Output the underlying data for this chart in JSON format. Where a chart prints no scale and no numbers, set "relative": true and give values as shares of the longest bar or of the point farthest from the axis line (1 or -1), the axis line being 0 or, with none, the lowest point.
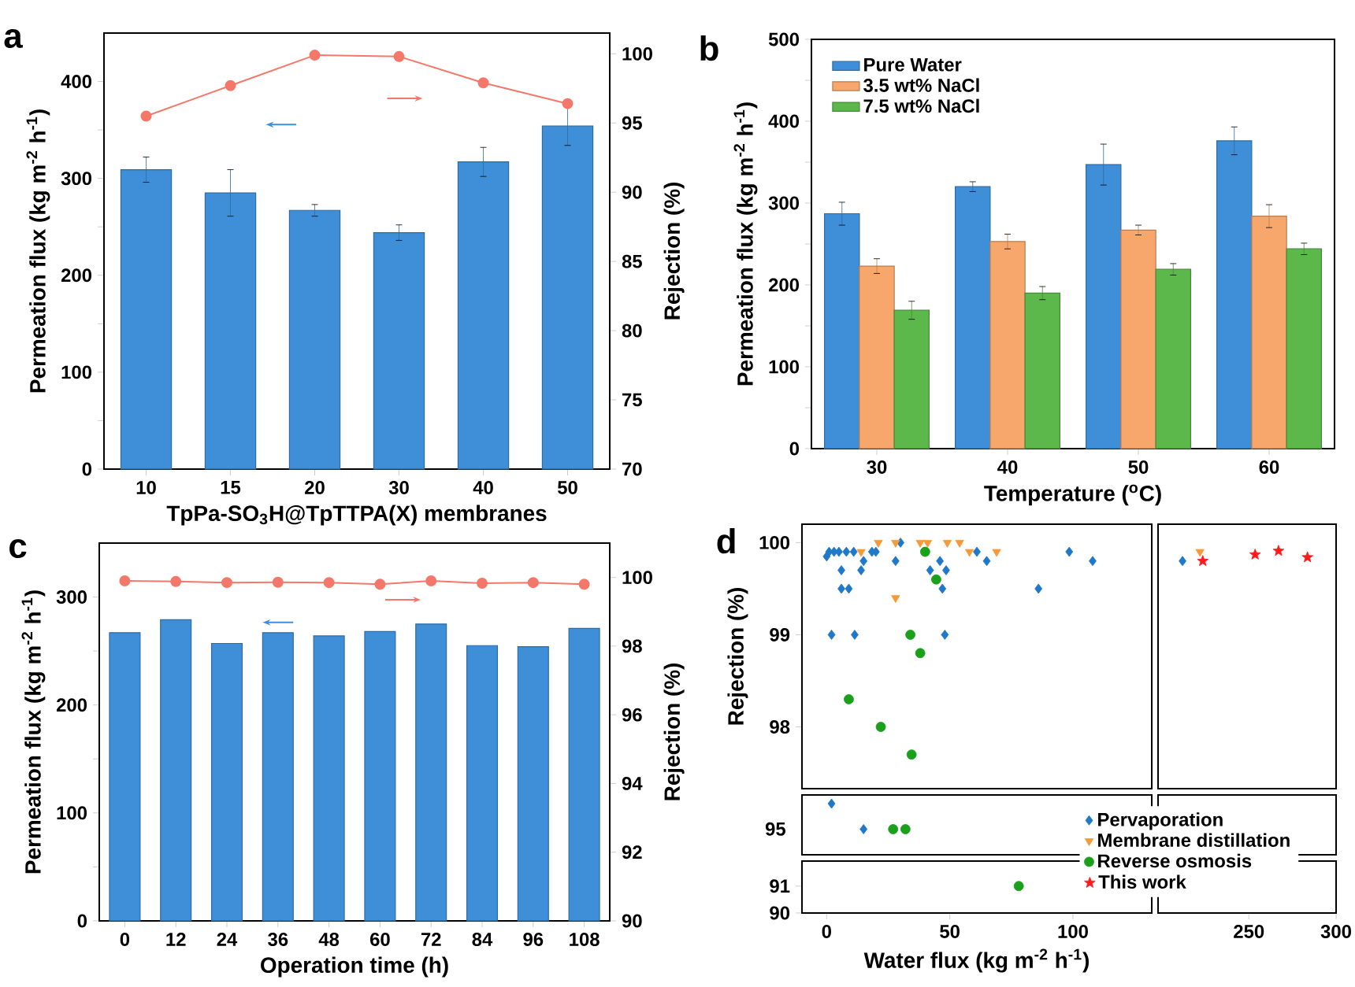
{
  "chart_data": [
    {
      "type": "bar",
      "title": "a",
      "categories": [
        "10",
        "15",
        "20",
        "30",
        "40",
        "50"
      ],
      "xlabel": "TpPa-SO$_{3}$H@TpTTPA(X) membranes",
      "ylabel": "Permeation flux (kg m$^{-2}$ h$^{-1}$)",
      "y2label": "Rejection (%)",
      "ylim": [
        0,
        450
      ],
      "yticks": [
        0,
        {
          "value": 50,
          "label": null
        },
        100,
        {
          "value": 150,
          "label": null
        },
        200,
        {
          "value": 250,
          "label": null
        },
        300,
        {
          "value": 350,
          "label": null
        },
        400
      ],
      "y2lim": [
        70,
        101.5
      ],
      "y2ticks": [
        70,
        75,
        80,
        85,
        90,
        95,
        100
      ],
      "series": [
        {
          "type": "bar",
          "color": "#3f8fd8",
          "values": [
            309,
            285,
            267,
            244,
            317,
            354
          ],
          "errors": [
            13,
            24,
            6,
            8,
            15,
            20
          ]
        },
        {
          "type": "line",
          "axis": "y2",
          "color": "#f4786a",
          "marker": "circle",
          "values": [
            95.5,
            97.7,
            99.9,
            99.8,
            97.9,
            96.4
          ]
        }
      ]
    },
    {
      "type": "bar",
      "title": "b",
      "categories": [
        "30",
        "40",
        "50",
        "60"
      ],
      "xlabel": "Temperature ($^{o}$C)",
      "ylabel": "Permeation flux (kg m$^{-2}$ h$^{-1}$)",
      "ylim": [
        0,
        500
      ],
      "yticks": [
        0,
        {
          "value": 50,
          "label": null
        },
        100,
        {
          "value": 150,
          "label": null
        },
        200,
        {
          "value": 250,
          "label": null
        },
        300,
        {
          "value": 350,
          "label": null
        },
        400,
        {
          "value": 450,
          "label": null
        },
        500
      ],
      "legend": "top left",
      "series": [
        {
          "name": "Pure Water",
          "color": "#3f8fd8",
          "values": [
            287,
            320,
            347,
            376
          ],
          "errors": [
            14,
            6,
            25,
            17
          ]
        },
        {
          "name": "3.5 wt% NaCl",
          "color": "#f7a66c",
          "values": [
            223,
            253,
            267,
            284
          ],
          "errors": [
            9,
            9,
            6,
            14
          ]
        },
        {
          "name": "7.5 wt% NaCl",
          "color": "#5cb84a",
          "values": [
            169,
            190,
            219,
            244
          ],
          "errors": [
            11,
            8,
            7,
            7
          ]
        }
      ]
    },
    {
      "type": "bar",
      "title": "c",
      "categories": [
        "0",
        "12",
        "24",
        "36",
        "48",
        "60",
        "72",
        "84",
        "96",
        "108"
      ],
      "xlabel": "Operation time (h)",
      "ylabel": "Permeation flux (kg m$^{-2}$ h$^{-1}$)",
      "y2label": "Rejection (%)",
      "ylim": [
        0,
        350
      ],
      "yticks": [
        0,
        {
          "value": 50,
          "label": null
        },
        100,
        {
          "value": 150,
          "label": null
        },
        200,
        {
          "value": 250,
          "label": null
        },
        300
      ],
      "y2lim": [
        90,
        101
      ],
      "y2ticks": [
        90,
        92,
        94,
        96,
        98,
        100
      ],
      "series": [
        {
          "type": "bar",
          "color": "#3f8fd8",
          "values": [
            267,
            279,
            257,
            267,
            264,
            268,
            275,
            255,
            254,
            271
          ]
        },
        {
          "type": "line",
          "axis": "y2",
          "color": "#f4786a",
          "marker": "circle",
          "values": [
            99.9,
            99.88,
            99.85,
            99.86,
            99.85,
            99.8,
            99.9,
            99.83,
            99.85,
            99.8
          ]
        }
      ]
    },
    {
      "type": "scatter",
      "title": "d",
      "ylabel": "Rejection (%)",
      "xlim": [
        -10,
        132
      ],
      "ylim": [
        97.33,
        100.2
      ],
      "yticks": [
        98,
        99,
        100
      ],
      "tick_labels": "y",
      "legend": "bottom right",
      "series": [
        {
          "name": "Pervaporation",
          "color": "#1f78c8",
          "marker": "diamond",
          "x": [
            0,
            1,
            3,
            5,
            8,
            11,
            6,
            6,
            9,
            2,
            11.4,
            14,
            15,
            18.4,
            20,
            28,
            30,
            42,
            46,
            47,
            48.5,
            48,
            61,
            65,
            86,
            98.5,
            108
          ],
          "values": [
            99.85,
            99.9,
            99.9,
            99.9,
            99.9,
            99.9,
            99.7,
            99.5,
            99.5,
            99.0,
            99.0,
            99.7,
            99.8,
            99.9,
            99.9,
            99.8,
            100,
            99.7,
            99.8,
            99.5,
            99.7,
            99.0,
            99.9,
            99.8,
            99.5,
            99.9,
            99.8
          ]
        },
        {
          "name": "Membrane distillation",
          "color": "#f59a3a",
          "marker": "triangle",
          "x": [
            14,
            20,
            21,
            28,
            28,
            38,
            41,
            49,
            54,
            58,
            69
          ],
          "values": [
            99.9,
            null,
            100,
            100,
            99.4,
            100,
            100,
            100,
            100,
            99.9,
            99.9
          ]
        },
        {
          "name": "Reverse osmosis",
          "color": "#1aa01a",
          "marker": "circle",
          "x": [
            40,
            44.5,
            34,
            38,
            9,
            22,
            34.5
          ],
          "values": [
            99.9,
            99.6,
            99.0,
            98.8,
            98.3,
            98.0,
            97.7
          ]
        }
      ]
    },
    {
      "type": "scatter",
      "xlim": [
        198,
        300
      ],
      "ylim": [
        97.33,
        100.2
      ],
      "tick_labels": false,
      "legend": "bottom left",
      "series": [
        {
          "color": "#1f78c8",
          "marker": "diamond",
          "x": [
            212
          ],
          "values": [
            99.8
          ]
        },
        {
          "color": "#f59a3a",
          "marker": "triangle",
          "x": [
            222
          ],
          "values": [
            99.9
          ]
        },
        {
          "name": "This work",
          "color": "#ff1a1a",
          "marker": "star",
          "x": [
            223.6,
            253.6,
            267,
            283.6
          ],
          "values": [
            99.8,
            99.87,
            99.91,
            99.84
          ]
        }
      ]
    },
    {
      "type": "scatter",
      "xlim": [
        -10,
        132
      ],
      "relative": true,
      "tick_labels": false,
      "annotations": [
        "95"
      ],
      "series": [
        {
          "color": "#1f78c8",
          "marker": "diamond",
          "x": [
            2,
            15
          ],
          "values": [
            1,
            0.5
          ]
        },
        {
          "color": "#1aa01a",
          "marker": "circle",
          "x": [
            27,
            32
          ],
          "values": [
            0.5,
            0.5
          ]
        }
      ]
    },
    {
      "type": "other"
    },
    {
      "type": "scatter",
      "xlabel": "Water flux (kg m$^{-2}$ h$^{-1}$)",
      "xlim": [
        -10,
        132
      ],
      "xticks": [
        0,
        50,
        100
      ],
      "ylim": [
        90,
        91.93
      ],
      "yticks": [
        90,
        91
      ],
      "series": [
        {
          "color": "#1aa01a",
          "marker": "circle",
          "x": [
            78
          ],
          "values": [
            91.0
          ]
        }
      ]
    },
    {
      "type": "scatter",
      "xlim": [
        198,
        300
      ],
      "xticks": [
        250,
        300
      ],
      "ylim": [
        90,
        91.93
      ],
      "tick_labels": "x"
    }
  ]
}
